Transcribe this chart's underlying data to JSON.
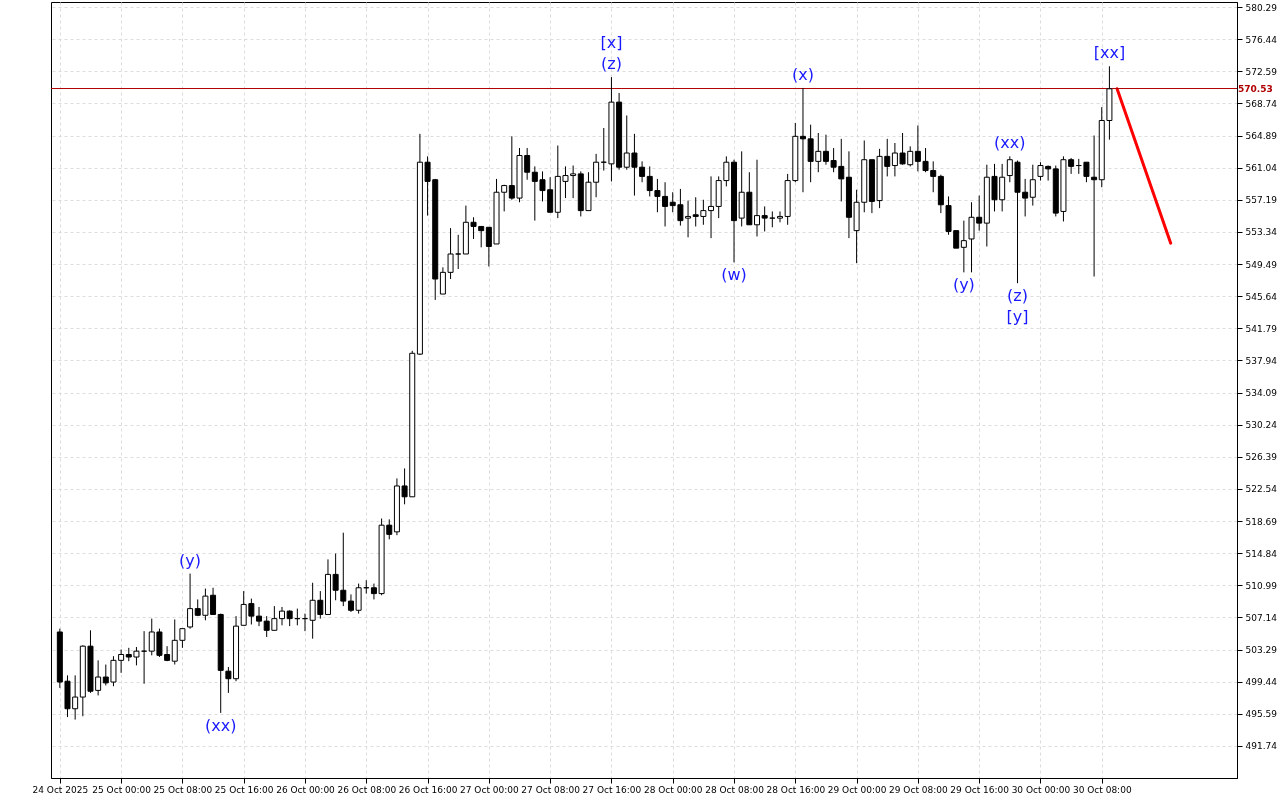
{
  "chart_data": {
    "type": "candlestick",
    "x": [
      "2025-10-24T16:00",
      "2025-10-24T17:00",
      "2025-10-24T18:00",
      "2025-10-24T19:00",
      "2025-10-24T20:00",
      "2025-10-24T21:00",
      "2025-10-24T22:00",
      "2025-10-24T23:00",
      "2025-10-25T00:00",
      "2025-10-25T01:00",
      "2025-10-25T02:00",
      "2025-10-25T03:00",
      "2025-10-25T04:00",
      "2025-10-25T05:00",
      "2025-10-25T06:00",
      "2025-10-25T07:00",
      "2025-10-25T08:00",
      "2025-10-25T09:00",
      "2025-10-25T10:00",
      "2025-10-25T11:00",
      "2025-10-25T12:00",
      "2025-10-25T13:00",
      "2025-10-25T14:00",
      "2025-10-25T15:00",
      "2025-10-25T16:00",
      "2025-10-25T17:00",
      "2025-10-25T18:00",
      "2025-10-25T19:00",
      "2025-10-25T20:00",
      "2025-10-25T21:00",
      "2025-10-25T22:00",
      "2025-10-25T23:00",
      "2025-10-26T00:00",
      "2025-10-26T01:00",
      "2025-10-26T02:00",
      "2025-10-26T03:00",
      "2025-10-26T04:00",
      "2025-10-26T05:00",
      "2025-10-26T06:00",
      "2025-10-26T07:00",
      "2025-10-26T08:00",
      "2025-10-26T09:00",
      "2025-10-26T10:00",
      "2025-10-26T11:00",
      "2025-10-26T12:00",
      "2025-10-26T13:00",
      "2025-10-26T14:00",
      "2025-10-26T15:00",
      "2025-10-26T16:00",
      "2025-10-26T17:00",
      "2025-10-26T18:00",
      "2025-10-26T19:00",
      "2025-10-26T20:00",
      "2025-10-26T21:00",
      "2025-10-26T22:00",
      "2025-10-26T23:00",
      "2025-10-27T00:00",
      "2025-10-27T01:00",
      "2025-10-27T02:00",
      "2025-10-27T03:00",
      "2025-10-27T04:00",
      "2025-10-27T05:00",
      "2025-10-27T06:00",
      "2025-10-27T07:00",
      "2025-10-27T08:00",
      "2025-10-27T09:00",
      "2025-10-27T10:00",
      "2025-10-27T11:00",
      "2025-10-27T12:00",
      "2025-10-27T13:00",
      "2025-10-27T14:00",
      "2025-10-27T15:00",
      "2025-10-27T16:00",
      "2025-10-27T17:00",
      "2025-10-27T18:00",
      "2025-10-27T19:00",
      "2025-10-27T20:00",
      "2025-10-27T21:00",
      "2025-10-27T22:00",
      "2025-10-27T23:00",
      "2025-10-28T00:00",
      "2025-10-28T01:00",
      "2025-10-28T02:00",
      "2025-10-28T03:00",
      "2025-10-28T04:00",
      "2025-10-28T05:00",
      "2025-10-28T06:00",
      "2025-10-28T07:00",
      "2025-10-28T08:00",
      "2025-10-28T09:00",
      "2025-10-28T10:00",
      "2025-10-28T11:00",
      "2025-10-28T12:00",
      "2025-10-28T13:00",
      "2025-10-28T14:00",
      "2025-10-28T15:00",
      "2025-10-28T16:00",
      "2025-10-28T17:00",
      "2025-10-28T18:00",
      "2025-10-28T19:00",
      "2025-10-28T20:00",
      "2025-10-28T21:00",
      "2025-10-28T22:00",
      "2025-10-28T23:00",
      "2025-10-29T00:00",
      "2025-10-29T01:00",
      "2025-10-29T02:00",
      "2025-10-29T03:00",
      "2025-10-29T04:00",
      "2025-10-29T05:00",
      "2025-10-29T06:00",
      "2025-10-29T07:00",
      "2025-10-29T08:00",
      "2025-10-29T09:00",
      "2025-10-29T10:00",
      "2025-10-29T11:00",
      "2025-10-29T12:00",
      "2025-10-29T13:00",
      "2025-10-29T14:00",
      "2025-10-29T15:00",
      "2025-10-29T16:00",
      "2025-10-29T17:00",
      "2025-10-29T18:00",
      "2025-10-29T19:00",
      "2025-10-29T20:00",
      "2025-10-29T21:00",
      "2025-10-29T22:00",
      "2025-10-29T23:00",
      "2025-10-30T00:00",
      "2025-10-30T01:00",
      "2025-10-30T02:00",
      "2025-10-30T03:00",
      "2025-10-30T04:00",
      "2025-10-30T05:00",
      "2025-10-30T06:00",
      "2025-10-30T07:00",
      "2025-10-30T08:00",
      "2025-10-30T09:00"
    ],
    "ohlc": [
      [
        505.4,
        505.8,
        498.7,
        499.4
      ],
      [
        499.5,
        500.2,
        495.2,
        496.2
      ],
      [
        496.2,
        500.2,
        494.9,
        497.6
      ],
      [
        497.6,
        503.8,
        495.3,
        503.7
      ],
      [
        503.7,
        505.6,
        498.1,
        498.3
      ],
      [
        498.4,
        502.0,
        497.8,
        500.0
      ],
      [
        500.0,
        501.5,
        499.0,
        499.3
      ],
      [
        499.4,
        502.5,
        498.9,
        502.0
      ],
      [
        502.0,
        503.3,
        500.5,
        502.7
      ],
      [
        502.7,
        503.5,
        501.9,
        502.4
      ],
      [
        502.4,
        503.6,
        501.4,
        503.1
      ],
      [
        503.1,
        505.5,
        499.2,
        503.1
      ],
      [
        503.1,
        507.0,
        502.6,
        505.4
      ],
      [
        505.4,
        505.8,
        502.4,
        502.6
      ],
      [
        502.7,
        503.7,
        501.9,
        502.0
      ],
      [
        501.9,
        506.9,
        501.5,
        504.4
      ],
      [
        504.4,
        505.8,
        503.5,
        505.8
      ],
      [
        506.0,
        512.4,
        505.8,
        508.2
      ],
      [
        508.2,
        509.3,
        507.3,
        507.4
      ],
      [
        507.4,
        510.6,
        506.8,
        509.7
      ],
      [
        509.8,
        510.7,
        507.5,
        507.5
      ],
      [
        507.5,
        507.6,
        495.7,
        500.8
      ],
      [
        500.7,
        501.2,
        498.1,
        499.8
      ],
      [
        499.8,
        507.3,
        499.5,
        506.1
      ],
      [
        506.2,
        510.3,
        506.2,
        508.7
      ],
      [
        508.8,
        509.4,
        506.3,
        507.3
      ],
      [
        507.3,
        508.4,
        506.1,
        506.7
      ],
      [
        506.7,
        507.3,
        504.8,
        505.6
      ],
      [
        505.6,
        508.5,
        505.6,
        507.0
      ],
      [
        507.0,
        508.4,
        506.2,
        507.9
      ],
      [
        507.9,
        508.0,
        506.1,
        507.0
      ],
      [
        507.0,
        508.2,
        506.2,
        507.0
      ],
      [
        507.0,
        507.6,
        505.5,
        507.0
      ],
      [
        506.8,
        511.3,
        504.6,
        509.2
      ],
      [
        509.2,
        510.3,
        507.0,
        507.5
      ],
      [
        507.5,
        514.1,
        507.5,
        512.3
      ],
      [
        512.3,
        514.8,
        509.2,
        510.4
      ],
      [
        510.4,
        517.3,
        508.5,
        509.1
      ],
      [
        509.1,
        509.9,
        507.8,
        508.0
      ],
      [
        508.0,
        511.2,
        507.6,
        510.7
      ],
      [
        510.7,
        511.6,
        510.0,
        510.7
      ],
      [
        510.7,
        511.2,
        509.3,
        510.0
      ],
      [
        510.0,
        519.0,
        509.8,
        518.2
      ],
      [
        518.2,
        518.9,
        516.5,
        517.1
      ],
      [
        517.4,
        523.8,
        517.0,
        522.9
      ],
      [
        522.9,
        525.0,
        520.7,
        521.6
      ],
      [
        521.6,
        539.1,
        521.6,
        538.8
      ],
      [
        538.7,
        565.1,
        538.6,
        561.7
      ],
      [
        561.7,
        562.4,
        555.3,
        559.4
      ],
      [
        559.6,
        559.7,
        545.2,
        547.7
      ],
      [
        545.9,
        549.1,
        545.9,
        548.5
      ],
      [
        548.5,
        553.8,
        547.7,
        550.7
      ],
      [
        550.7,
        553.0,
        548.9,
        550.7
      ],
      [
        550.7,
        556.5,
        550.7,
        554.5
      ],
      [
        554.5,
        555.1,
        552.5,
        554.0
      ],
      [
        554.0,
        554.0,
        551.5,
        553.5
      ],
      [
        553.9,
        553.9,
        549.2,
        551.6
      ],
      [
        551.9,
        559.7,
        551.9,
        558.1
      ],
      [
        558.1,
        559.0,
        555.8,
        558.9
      ],
      [
        558.9,
        564.8,
        557.2,
        557.4
      ],
      [
        557.4,
        563.4,
        556.9,
        562.5
      ],
      [
        562.5,
        563.4,
        559.6,
        560.5
      ],
      [
        560.5,
        561.2,
        554.7,
        559.4
      ],
      [
        559.6,
        560.6,
        557.0,
        558.3
      ],
      [
        558.4,
        559.9,
        555.7,
        555.7
      ],
      [
        555.7,
        563.7,
        555.0,
        560.0
      ],
      [
        559.4,
        561.2,
        557.4,
        560.1
      ],
      [
        560.1,
        561.3,
        557.4,
        560.3
      ],
      [
        560.3,
        560.6,
        555.2,
        555.9
      ],
      [
        555.9,
        560.5,
        555.9,
        559.3
      ],
      [
        559.3,
        562.7,
        557.5,
        561.7
      ],
      [
        561.7,
        565.8,
        560.7,
        561.7
      ],
      [
        561.5,
        571.9,
        559.4,
        568.9
      ],
      [
        568.9,
        570.0,
        560.8,
        561.1
      ],
      [
        561.1,
        567.3,
        560.8,
        562.8
      ],
      [
        562.8,
        565.1,
        557.7,
        561.1
      ],
      [
        561.1,
        561.8,
        559.3,
        560.0
      ],
      [
        560.0,
        561.2,
        557.6,
        558.3
      ],
      [
        558.3,
        559.7,
        555.7,
        557.6
      ],
      [
        557.6,
        559.3,
        554.0,
        556.4
      ],
      [
        556.9,
        558.1,
        555.7,
        556.5
      ],
      [
        556.6,
        558.5,
        554.1,
        554.7
      ],
      [
        555.0,
        557.1,
        552.7,
        555.2
      ],
      [
        555.4,
        557.5,
        554.0,
        555.2
      ],
      [
        555.2,
        557.2,
        554.2,
        555.9
      ],
      [
        555.9,
        560.0,
        552.6,
        556.4
      ],
      [
        556.4,
        560.0,
        555.0,
        559.5
      ],
      [
        559.5,
        562.4,
        558.8,
        561.7
      ],
      [
        561.7,
        562.0,
        549.7,
        554.7
      ],
      [
        555.0,
        563.0,
        554.0,
        558.1
      ],
      [
        558.1,
        560.5,
        554.2,
        554.2
      ],
      [
        554.2,
        562.0,
        552.8,
        555.3
      ],
      [
        555.3,
        556.4,
        553.4,
        555.0
      ],
      [
        555.0,
        555.8,
        553.9,
        555.0
      ],
      [
        555.0,
        555.8,
        554.5,
        555.2
      ],
      [
        555.2,
        560.3,
        554.2,
        559.5
      ],
      [
        559.5,
        566.4,
        559.3,
        564.8
      ],
      [
        564.8,
        570.6,
        558.1,
        564.5
      ],
      [
        564.5,
        566.2,
        559.3,
        561.8
      ],
      [
        561.8,
        565.2,
        560.5,
        563.0
      ],
      [
        563.0,
        565.0,
        561.4,
        561.8
      ],
      [
        561.9,
        563.4,
        560.5,
        561.1
      ],
      [
        561.2,
        564.5,
        557.0,
        559.7
      ],
      [
        559.9,
        563.0,
        552.6,
        555.1
      ],
      [
        553.5,
        558.4,
        549.6,
        556.9
      ],
      [
        556.9,
        564.3,
        555.7,
        562.0
      ],
      [
        562.0,
        562.0,
        555.6,
        557.0
      ],
      [
        557.1,
        563.3,
        556.2,
        562.4
      ],
      [
        562.4,
        564.5,
        560.0,
        561.2
      ],
      [
        561.3,
        564.0,
        560.0,
        562.8
      ],
      [
        562.8,
        565.2,
        561.4,
        561.5
      ],
      [
        561.4,
        563.6,
        561.2,
        563.0
      ],
      [
        563.0,
        566.1,
        560.6,
        561.8
      ],
      [
        561.8,
        563.4,
        560.5,
        560.7
      ],
      [
        560.7,
        561.8,
        558.1,
        560.0
      ],
      [
        560.0,
        560.2,
        555.6,
        556.6
      ],
      [
        556.5,
        557.6,
        553.0,
        553.4
      ],
      [
        553.5,
        553.5,
        551.4,
        551.4
      ],
      [
        551.5,
        554.7,
        548.5,
        552.3
      ],
      [
        552.5,
        556.9,
        548.5,
        555.1
      ],
      [
        555.1,
        557.7,
        553.5,
        554.4
      ],
      [
        554.4,
        561.4,
        551.6,
        559.9
      ],
      [
        560.0,
        561.5,
        555.8,
        557.2
      ],
      [
        557.2,
        561.5,
        555.8,
        559.9
      ],
      [
        560.1,
        562.4,
        559.3,
        562.0
      ],
      [
        561.7,
        561.9,
        547.2,
        558.1
      ],
      [
        558.1,
        559.7,
        555.2,
        557.4
      ],
      [
        557.5,
        561.4,
        556.5,
        559.6
      ],
      [
        560.0,
        561.7,
        559.5,
        561.3
      ],
      [
        561.2,
        561.3,
        559.5,
        560.9
      ],
      [
        560.9,
        561.3,
        555.2,
        555.6
      ],
      [
        555.8,
        562.4,
        554.6,
        562.0
      ],
      [
        562.0,
        562.2,
        560.3,
        561.2
      ],
      [
        561.3,
        562.1,
        560.3,
        561.3
      ],
      [
        561.7,
        561.7,
        559.3,
        560.0
      ],
      [
        559.9,
        564.9,
        548.0,
        559.6
      ],
      [
        559.6,
        568.3,
        558.7,
        566.7
      ],
      [
        566.7,
        573.2,
        564.4,
        570.5
      ]
    ],
    "series": [
      {
        "type": "line",
        "color": "#ff0000",
        "x": [
          "2025-10-30T10:00",
          "2025-10-30T17:00"
        ],
        "values": [
          570.5,
          552.0
        ]
      }
    ],
    "ref_lines": [
      {
        "axis": "y",
        "value": 570.53,
        "label": "570.53",
        "color": "#b00000"
      }
    ],
    "annotations": [
      {
        "text": "(y)",
        "x": "2025-10-25T09:00",
        "y": 512.4
      },
      {
        "text": "(xx)",
        "x": "2025-10-25T13:00",
        "y": 495.7
      },
      {
        "text": "(z)",
        "x": "2025-10-27T16:00",
        "y": 571.9
      },
      {
        "text": "[x]",
        "x": "2025-10-27T16:00",
        "y": 571.9
      },
      {
        "text": "(w)",
        "x": "2025-10-28T08:00",
        "y": 549.7
      },
      {
        "text": "(x)",
        "x": "2025-10-28T17:00",
        "y": 570.6
      },
      {
        "text": "(y)",
        "x": "2025-10-29T14:00",
        "y": 548.5
      },
      {
        "text": "(xx)",
        "x": "2025-10-29T20:00",
        "y": 562.4
      },
      {
        "text": "(z)",
        "x": "2025-10-29T21:00",
        "y": 547.2
      },
      {
        "text": "[y]",
        "x": "2025-10-29T21:00",
        "y": 547.2
      },
      {
        "text": "[xx]",
        "x": "2025-10-30T09:00",
        "y": 573.2
      }
    ],
    "xlim": [
      "2025-10-24T15:30",
      "2025-10-31T01:00"
    ],
    "xticks": [
      {
        "value": "2025-10-24T16:00",
        "label": "24 Oct 2025"
      },
      {
        "value": "2025-10-25T00:00",
        "label": "25 Oct 00:00"
      },
      {
        "value": "2025-10-25T08:00",
        "label": "25 Oct 08:00"
      },
      {
        "value": "2025-10-25T16:00",
        "label": "25 Oct 16:00"
      },
      {
        "value": "2025-10-26T00:00",
        "label": "26 Oct 00:00"
      },
      {
        "value": "2025-10-26T08:00",
        "label": "26 Oct 08:00"
      },
      {
        "value": "2025-10-26T16:00",
        "label": "26 Oct 16:00"
      },
      {
        "value": "2025-10-27T00:00",
        "label": "27 Oct 00:00"
      },
      {
        "value": "2025-10-27T08:00",
        "label": "27 Oct 08:00"
      },
      {
        "value": "2025-10-27T16:00",
        "label": "27 Oct 16:00"
      },
      {
        "value": "2025-10-28T00:00",
        "label": "28 Oct 00:00"
      },
      {
        "value": "2025-10-28T08:00",
        "label": "28 Oct 08:00"
      },
      {
        "value": "2025-10-28T16:00",
        "label": "28 Oct 16:00"
      },
      {
        "value": "2025-10-29T00:00",
        "label": "29 Oct 00:00"
      },
      {
        "value": "2025-10-29T08:00",
        "label": "29 Oct 08:00"
      },
      {
        "value": "2025-10-29T16:00",
        "label": "29 Oct 16:00"
      },
      {
        "value": "2025-10-30T00:00",
        "label": "30 Oct 00:00"
      },
      {
        "value": "2025-10-30T08:00",
        "label": "30 Oct 08:00"
      }
    ],
    "ylim": [
      487.9,
      580.9
    ],
    "yticks": [
      580.29,
      576.44,
      572.59,
      568.74,
      564.89,
      561.04,
      557.19,
      553.34,
      549.49,
      545.64,
      541.79,
      537.94,
      534.09,
      530.24,
      526.39,
      522.54,
      518.69,
      514.84,
      510.99,
      507.14,
      503.29,
      499.44,
      495.59,
      491.74
    ],
    "grid": true
  }
}
